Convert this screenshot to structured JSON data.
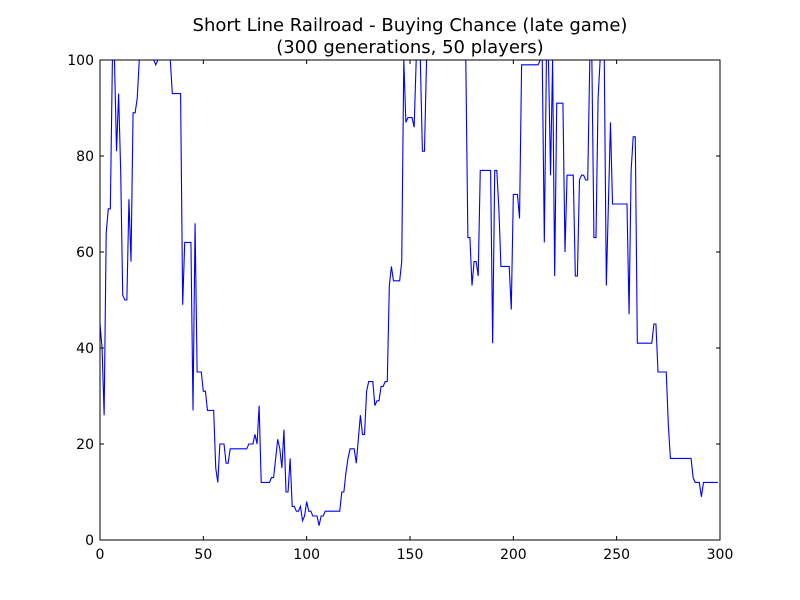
{
  "chart_data": {
    "type": "line",
    "title": "Short Line Railroad - Buying Chance (late game)",
    "subtitle": "(300 generations, 50 players)",
    "xlabel": "",
    "ylabel": "",
    "xlim": [
      0,
      300
    ],
    "ylim": [
      0,
      100
    ],
    "xticks": [
      0,
      50,
      100,
      150,
      200,
      250,
      300
    ],
    "yticks": [
      0,
      20,
      40,
      60,
      80,
      100
    ],
    "grid": false,
    "series": [
      {
        "color": "#0000ff",
        "points": [
          [
            0,
            45
          ],
          [
            1,
            40
          ],
          [
            2,
            26
          ],
          [
            3,
            64
          ],
          [
            4,
            69
          ],
          [
            5,
            69
          ],
          [
            6,
            100
          ],
          [
            7,
            100
          ],
          [
            8,
            81
          ],
          [
            9,
            93
          ],
          [
            10,
            77
          ],
          [
            11,
            51
          ],
          [
            12,
            50
          ],
          [
            13,
            50
          ],
          [
            14,
            71
          ],
          [
            15,
            58
          ],
          [
            16,
            89
          ],
          [
            17,
            89
          ],
          [
            18,
            92
          ],
          [
            19,
            100
          ],
          [
            20,
            100
          ],
          [
            21,
            100
          ],
          [
            22,
            100
          ],
          [
            23,
            100
          ],
          [
            24,
            100
          ],
          [
            25,
            100
          ],
          [
            26,
            100
          ],
          [
            27,
            99
          ],
          [
            28,
            100
          ],
          [
            29,
            100
          ],
          [
            30,
            100
          ],
          [
            31,
            100
          ],
          [
            32,
            100
          ],
          [
            33,
            100
          ],
          [
            34,
            100
          ],
          [
            35,
            93
          ],
          [
            36,
            93
          ],
          [
            37,
            93
          ],
          [
            38,
            93
          ],
          [
            39,
            93
          ],
          [
            40,
            49
          ],
          [
            41,
            62
          ],
          [
            42,
            62
          ],
          [
            43,
            62
          ],
          [
            44,
            62
          ],
          [
            45,
            27
          ],
          [
            46,
            66
          ],
          [
            47,
            35
          ],
          [
            48,
            35
          ],
          [
            49,
            35
          ],
          [
            50,
            31
          ],
          [
            51,
            31
          ],
          [
            52,
            27
          ],
          [
            53,
            27
          ],
          [
            54,
            27
          ],
          [
            55,
            27
          ],
          [
            56,
            15
          ],
          [
            57,
            12
          ],
          [
            58,
            20
          ],
          [
            59,
            20
          ],
          [
            60,
            20
          ],
          [
            61,
            16
          ],
          [
            62,
            16
          ],
          [
            63,
            19
          ],
          [
            64,
            19
          ],
          [
            65,
            19
          ],
          [
            66,
            19
          ],
          [
            67,
            19
          ],
          [
            68,
            19
          ],
          [
            69,
            19
          ],
          [
            70,
            19
          ],
          [
            71,
            19
          ],
          [
            72,
            20
          ],
          [
            73,
            20
          ],
          [
            74,
            20
          ],
          [
            75,
            22
          ],
          [
            76,
            20
          ],
          [
            77,
            28
          ],
          [
            78,
            12
          ],
          [
            79,
            12
          ],
          [
            80,
            12
          ],
          [
            81,
            12
          ],
          [
            82,
            12
          ],
          [
            83,
            13
          ],
          [
            84,
            13
          ],
          [
            85,
            17
          ],
          [
            86,
            21
          ],
          [
            87,
            19
          ],
          [
            88,
            15
          ],
          [
            89,
            23
          ],
          [
            90,
            10
          ],
          [
            91,
            10
          ],
          [
            92,
            17
          ],
          [
            93,
            7
          ],
          [
            94,
            7
          ],
          [
            95,
            6
          ],
          [
            96,
            6
          ],
          [
            97,
            7
          ],
          [
            98,
            4
          ],
          [
            99,
            5
          ],
          [
            100,
            8
          ],
          [
            101,
            6
          ],
          [
            102,
            6
          ],
          [
            103,
            5
          ],
          [
            104,
            5
          ],
          [
            105,
            5
          ],
          [
            106,
            3
          ],
          [
            107,
            5
          ],
          [
            108,
            5
          ],
          [
            109,
            6
          ],
          [
            110,
            6
          ],
          [
            111,
            6
          ],
          [
            112,
            6
          ],
          [
            113,
            6
          ],
          [
            114,
            6
          ],
          [
            115,
            6
          ],
          [
            116,
            6
          ],
          [
            117,
            10
          ],
          [
            118,
            10
          ],
          [
            119,
            14
          ],
          [
            120,
            17
          ],
          [
            121,
            19
          ],
          [
            122,
            19
          ],
          [
            123,
            19
          ],
          [
            124,
            16
          ],
          [
            125,
            21
          ],
          [
            126,
            26
          ],
          [
            127,
            22
          ],
          [
            128,
            22
          ],
          [
            129,
            31
          ],
          [
            130,
            33
          ],
          [
            131,
            33
          ],
          [
            132,
            33
          ],
          [
            133,
            28
          ],
          [
            134,
            29
          ],
          [
            135,
            29
          ],
          [
            136,
            32
          ],
          [
            137,
            32
          ],
          [
            138,
            33
          ],
          [
            139,
            33
          ],
          [
            140,
            53
          ],
          [
            141,
            57
          ],
          [
            142,
            54
          ],
          [
            143,
            54
          ],
          [
            144,
            54
          ],
          [
            145,
            54
          ],
          [
            146,
            58
          ],
          [
            147,
            100
          ],
          [
            148,
            87
          ],
          [
            149,
            88
          ],
          [
            150,
            88
          ],
          [
            151,
            88
          ],
          [
            152,
            86
          ],
          [
            153,
            100
          ],
          [
            154,
            100
          ],
          [
            155,
            100
          ],
          [
            156,
            81
          ],
          [
            157,
            81
          ],
          [
            158,
            100
          ],
          [
            159,
            100
          ],
          [
            160,
            100
          ],
          [
            161,
            100
          ],
          [
            162,
            100
          ],
          [
            163,
            100
          ],
          [
            164,
            100
          ],
          [
            165,
            100
          ],
          [
            166,
            100
          ],
          [
            167,
            100
          ],
          [
            168,
            100
          ],
          [
            169,
            100
          ],
          [
            170,
            100
          ],
          [
            171,
            100
          ],
          [
            172,
            100
          ],
          [
            173,
            100
          ],
          [
            174,
            100
          ],
          [
            175,
            100
          ],
          [
            176,
            100
          ],
          [
            177,
            100
          ],
          [
            178,
            63
          ],
          [
            179,
            63
          ],
          [
            180,
            53
          ],
          [
            181,
            58
          ],
          [
            182,
            58
          ],
          [
            183,
            55
          ],
          [
            184,
            77
          ],
          [
            185,
            77
          ],
          [
            186,
            77
          ],
          [
            187,
            77
          ],
          [
            188,
            77
          ],
          [
            189,
            77
          ],
          [
            190,
            41
          ],
          [
            191,
            77
          ],
          [
            192,
            77
          ],
          [
            193,
            69
          ],
          [
            194,
            57
          ],
          [
            195,
            57
          ],
          [
            196,
            57
          ],
          [
            197,
            57
          ],
          [
            198,
            57
          ],
          [
            199,
            48
          ],
          [
            200,
            72
          ],
          [
            201,
            72
          ],
          [
            202,
            72
          ],
          [
            203,
            67
          ],
          [
            204,
            99
          ],
          [
            205,
            99
          ],
          [
            206,
            99
          ],
          [
            207,
            99
          ],
          [
            208,
            99
          ],
          [
            209,
            99
          ],
          [
            210,
            99
          ],
          [
            211,
            99
          ],
          [
            212,
            99
          ],
          [
            213,
            100
          ],
          [
            214,
            100
          ],
          [
            215,
            62
          ],
          [
            216,
            100
          ],
          [
            217,
            100
          ],
          [
            218,
            76
          ],
          [
            219,
            100
          ],
          [
            220,
            55
          ],
          [
            221,
            91
          ],
          [
            222,
            91
          ],
          [
            223,
            91
          ],
          [
            224,
            91
          ],
          [
            225,
            60
          ],
          [
            226,
            76
          ],
          [
            227,
            76
          ],
          [
            228,
            76
          ],
          [
            229,
            76
          ],
          [
            230,
            55
          ],
          [
            231,
            55
          ],
          [
            232,
            75
          ],
          [
            233,
            76
          ],
          [
            234,
            76
          ],
          [
            235,
            75
          ],
          [
            236,
            75
          ],
          [
            237,
            100
          ],
          [
            238,
            100
          ],
          [
            239,
            63
          ],
          [
            240,
            63
          ],
          [
            241,
            92
          ],
          [
            242,
            100
          ],
          [
            243,
            100
          ],
          [
            244,
            100
          ],
          [
            245,
            53
          ],
          [
            246,
            70
          ],
          [
            247,
            87
          ],
          [
            248,
            70
          ],
          [
            249,
            70
          ],
          [
            250,
            70
          ],
          [
            251,
            70
          ],
          [
            252,
            70
          ],
          [
            253,
            70
          ],
          [
            254,
            70
          ],
          [
            255,
            70
          ],
          [
            256,
            47
          ],
          [
            257,
            77
          ],
          [
            258,
            84
          ],
          [
            259,
            84
          ],
          [
            260,
            41
          ],
          [
            261,
            41
          ],
          [
            262,
            41
          ],
          [
            263,
            41
          ],
          [
            264,
            41
          ],
          [
            265,
            41
          ],
          [
            266,
            41
          ],
          [
            267,
            41
          ],
          [
            268,
            45
          ],
          [
            269,
            45
          ],
          [
            270,
            35
          ],
          [
            271,
            35
          ],
          [
            272,
            35
          ],
          [
            273,
            35
          ],
          [
            274,
            35
          ],
          [
            275,
            24
          ],
          [
            276,
            17
          ],
          [
            277,
            17
          ],
          [
            278,
            17
          ],
          [
            279,
            17
          ],
          [
            280,
            17
          ],
          [
            281,
            17
          ],
          [
            282,
            17
          ],
          [
            283,
            17
          ],
          [
            284,
            17
          ],
          [
            285,
            17
          ],
          [
            286,
            17
          ],
          [
            287,
            13
          ],
          [
            288,
            12
          ],
          [
            289,
            12
          ],
          [
            290,
            12
          ],
          [
            291,
            9
          ],
          [
            292,
            12
          ],
          [
            293,
            12
          ],
          [
            294,
            12
          ],
          [
            295,
            12
          ],
          [
            296,
            12
          ],
          [
            297,
            12
          ],
          [
            298,
            12
          ],
          [
            299,
            12
          ]
        ]
      }
    ]
  }
}
